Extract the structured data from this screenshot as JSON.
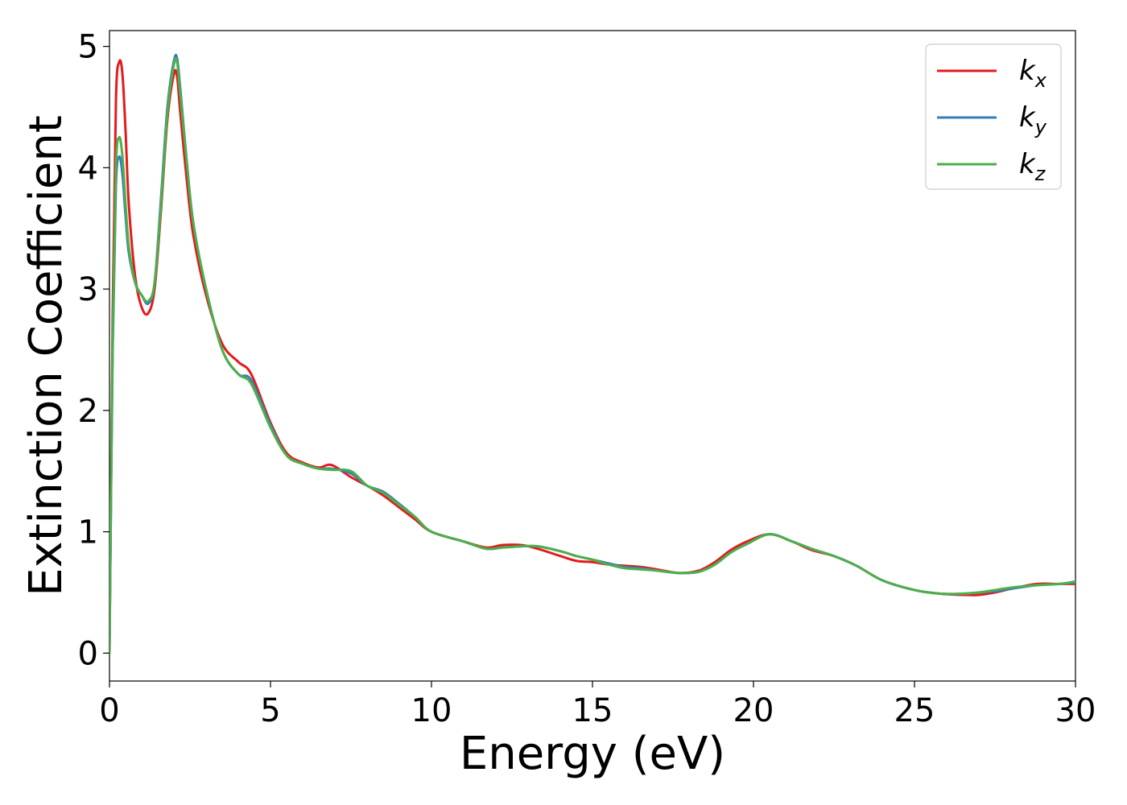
{
  "chart_data": {
    "type": "line",
    "title": "",
    "xlabel": "Energy (eV)",
    "ylabel": "Extinction Coefficient",
    "xlim": [
      0,
      30
    ],
    "ylim": [
      -0.23,
      5.13
    ],
    "x_ticks": [
      0,
      5,
      10,
      15,
      20,
      25,
      30
    ],
    "y_ticks": [
      0,
      1,
      2,
      3,
      4,
      5
    ],
    "grid": false,
    "legend_position": "top-right",
    "series": [
      {
        "name": "k",
        "subscript": "x",
        "color": "#e41a1c",
        "x": [
          0,
          0.1,
          0.2,
          0.3,
          0.4,
          0.5,
          0.6,
          0.8,
          1.0,
          1.2,
          1.4,
          1.6,
          1.8,
          2.0,
          2.1,
          2.2,
          2.4,
          2.6,
          3.0,
          3.5,
          4.0,
          4.4,
          5.0,
          5.5,
          6.0,
          6.5,
          6.9,
          7.5,
          8.0,
          8.5,
          9.0,
          9.5,
          10.0,
          11.0,
          11.7,
          12.2,
          12.8,
          13.3,
          14.0,
          14.5,
          15.0,
          15.5,
          16.0,
          16.5,
          17.0,
          17.7,
          18.3,
          18.8,
          19.3,
          19.8,
          20.5,
          21.2,
          21.8,
          22.5,
          23.2,
          24.0,
          25.0,
          25.8,
          26.5,
          27.0,
          27.5,
          28.0,
          28.8,
          29.5,
          30.0
        ],
        "y": [
          0,
          2.8,
          4.55,
          4.87,
          4.78,
          4.3,
          3.7,
          3.1,
          2.85,
          2.8,
          3.0,
          3.65,
          4.4,
          4.77,
          4.75,
          4.45,
          3.9,
          3.45,
          2.95,
          2.55,
          2.4,
          2.3,
          1.9,
          1.65,
          1.57,
          1.53,
          1.55,
          1.45,
          1.38,
          1.3,
          1.2,
          1.1,
          1.0,
          0.92,
          0.87,
          0.89,
          0.89,
          0.86,
          0.8,
          0.76,
          0.75,
          0.73,
          0.72,
          0.71,
          0.69,
          0.66,
          0.68,
          0.75,
          0.85,
          0.92,
          0.98,
          0.92,
          0.85,
          0.8,
          0.72,
          0.6,
          0.52,
          0.49,
          0.48,
          0.48,
          0.5,
          0.53,
          0.57,
          0.57,
          0.57
        ]
      },
      {
        "name": "k",
        "subscript": "y",
        "color": "#377eb8",
        "x": [
          0,
          0.1,
          0.2,
          0.3,
          0.4,
          0.5,
          0.6,
          0.8,
          1.0,
          1.2,
          1.4,
          1.6,
          1.8,
          2.0,
          2.1,
          2.2,
          2.4,
          2.6,
          3.0,
          3.5,
          4.0,
          4.4,
          5.0,
          5.5,
          6.0,
          6.5,
          6.9,
          7.5,
          8.0,
          8.5,
          9.0,
          9.5,
          10.0,
          11.0,
          11.7,
          12.2,
          12.8,
          13.3,
          14.0,
          14.5,
          15.0,
          15.5,
          16.0,
          16.5,
          17.0,
          17.7,
          18.3,
          18.8,
          19.3,
          19.8,
          20.5,
          21.2,
          21.8,
          22.5,
          23.2,
          24.0,
          25.0,
          25.8,
          26.5,
          27.0,
          27.5,
          28.0,
          28.8,
          29.5,
          30.0
        ],
        "y": [
          0,
          2.5,
          3.85,
          4.09,
          3.95,
          3.6,
          3.3,
          3.05,
          2.95,
          2.88,
          3.05,
          3.75,
          4.5,
          4.88,
          4.9,
          4.65,
          4.05,
          3.55,
          3.0,
          2.5,
          2.3,
          2.25,
          1.88,
          1.63,
          1.56,
          1.52,
          1.52,
          1.48,
          1.38,
          1.33,
          1.23,
          1.12,
          1.0,
          0.92,
          0.86,
          0.87,
          0.88,
          0.88,
          0.84,
          0.8,
          0.77,
          0.74,
          0.71,
          0.7,
          0.68,
          0.66,
          0.67,
          0.73,
          0.83,
          0.9,
          0.98,
          0.92,
          0.86,
          0.8,
          0.72,
          0.6,
          0.52,
          0.49,
          0.49,
          0.5,
          0.51,
          0.53,
          0.56,
          0.57,
          0.58
        ]
      },
      {
        "name": "k",
        "subscript": "z",
        "color": "#4daf4a",
        "x": [
          0,
          0.1,
          0.2,
          0.3,
          0.4,
          0.5,
          0.6,
          0.8,
          1.0,
          1.2,
          1.4,
          1.6,
          1.8,
          2.0,
          2.1,
          2.2,
          2.4,
          2.6,
          3.0,
          3.5,
          4.0,
          4.4,
          5.0,
          5.5,
          6.0,
          6.5,
          6.9,
          7.5,
          8.0,
          8.5,
          9.0,
          9.5,
          10.0,
          11.0,
          11.7,
          12.2,
          12.8,
          13.3,
          14.0,
          14.5,
          15.0,
          15.5,
          16.0,
          16.5,
          17.0,
          17.7,
          18.3,
          18.8,
          19.3,
          19.8,
          20.5,
          21.2,
          21.8,
          22.5,
          23.2,
          24.0,
          25.0,
          25.8,
          26.5,
          27.0,
          27.5,
          28.0,
          28.8,
          29.5,
          30.0
        ],
        "y": [
          0,
          2.6,
          4.0,
          4.25,
          4.1,
          3.7,
          3.35,
          3.05,
          2.95,
          2.9,
          3.05,
          3.7,
          4.45,
          4.85,
          4.87,
          4.6,
          4.05,
          3.55,
          3.0,
          2.5,
          2.3,
          2.22,
          1.86,
          1.63,
          1.56,
          1.52,
          1.51,
          1.5,
          1.38,
          1.32,
          1.22,
          1.12,
          1.0,
          0.92,
          0.86,
          0.87,
          0.88,
          0.88,
          0.84,
          0.8,
          0.77,
          0.73,
          0.7,
          0.69,
          0.68,
          0.66,
          0.67,
          0.73,
          0.83,
          0.9,
          0.98,
          0.92,
          0.86,
          0.8,
          0.72,
          0.6,
          0.52,
          0.49,
          0.49,
          0.5,
          0.52,
          0.54,
          0.56,
          0.57,
          0.59
        ]
      }
    ]
  }
}
